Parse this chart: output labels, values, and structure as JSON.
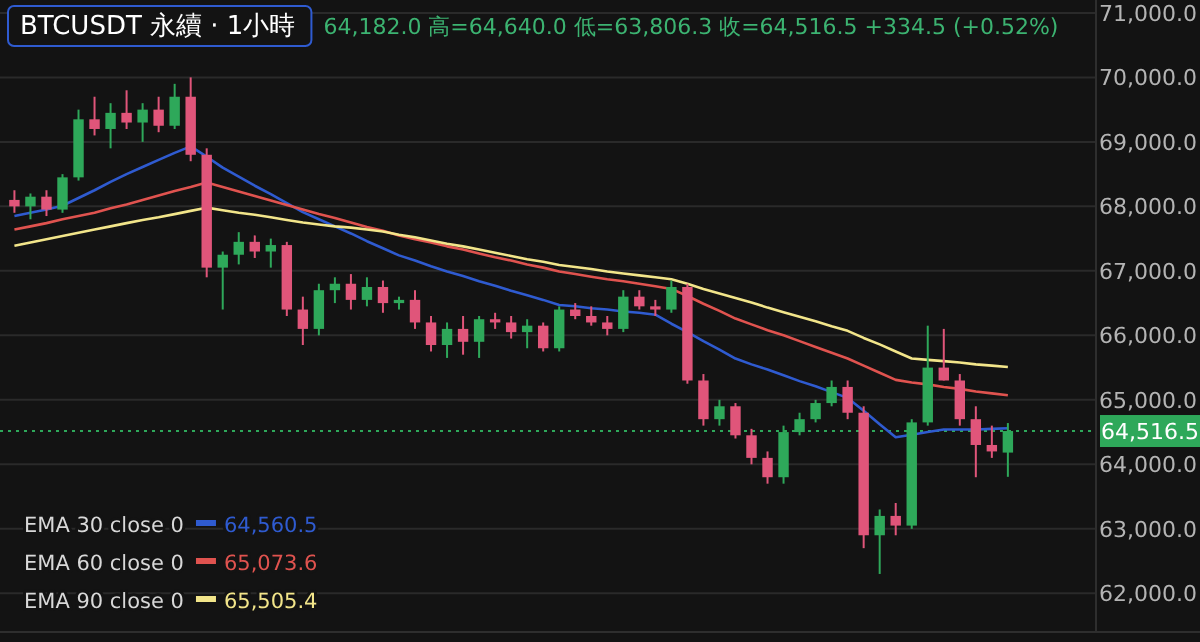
{
  "chart_data": {
    "type": "candlestick",
    "title": "BTCUSDT 永續 · 1小時",
    "subtitle": "64,182.0 高=64,640.0 低=63,806.3 收=64,516.5 +334.5 (+0.52%)",
    "categories": [
      null,
      null,
      null,
      null,
      null,
      null,
      null,
      null,
      null,
      null,
      null,
      null,
      null,
      null,
      null,
      null,
      null,
      null,
      null,
      null,
      null,
      null,
      null,
      null,
      null,
      null,
      null,
      null,
      null,
      null,
      null,
      null,
      null,
      null,
      null,
      null,
      null,
      null,
      null,
      null,
      null,
      null,
      null,
      null,
      null,
      null,
      null,
      null,
      null,
      null,
      null,
      null,
      null,
      null,
      null,
      null,
      null,
      null,
      null,
      null,
      null,
      null,
      null
    ],
    "ohlc": [
      [
        68100,
        68250,
        67900,
        68000
      ],
      [
        68000,
        68200,
        67800,
        68150
      ],
      [
        68150,
        68250,
        67850,
        67950
      ],
      [
        67950,
        68500,
        67900,
        68450
      ],
      [
        68450,
        69500,
        68400,
        69350
      ],
      [
        69350,
        69700,
        69100,
        69200
      ],
      [
        69200,
        69600,
        68900,
        69450
      ],
      [
        69450,
        69800,
        69200,
        69300
      ],
      [
        69300,
        69600,
        69000,
        69500
      ],
      [
        69500,
        69700,
        69150,
        69250
      ],
      [
        69250,
        69900,
        69200,
        69700
      ],
      [
        69700,
        70000,
        68700,
        68800
      ],
      [
        68800,
        68900,
        66900,
        67050
      ],
      [
        67050,
        67300,
        66400,
        67250
      ],
      [
        67250,
        67600,
        67100,
        67450
      ],
      [
        67450,
        67550,
        67200,
        67300
      ],
      [
        67300,
        67500,
        67050,
        67400
      ],
      [
        67400,
        67450,
        66300,
        66400
      ],
      [
        66400,
        66600,
        65850,
        66100
      ],
      [
        66100,
        66800,
        66000,
        66700
      ],
      [
        66700,
        66900,
        66500,
        66800
      ],
      [
        66800,
        66950,
        66400,
        66550
      ],
      [
        66550,
        66900,
        66450,
        66750
      ],
      [
        66750,
        66850,
        66350,
        66500
      ],
      [
        66500,
        66600,
        66400,
        66550
      ],
      [
        66550,
        66700,
        66100,
        66200
      ],
      [
        66200,
        66300,
        65750,
        65850
      ],
      [
        65850,
        66200,
        65650,
        66100
      ],
      [
        66100,
        66300,
        65700,
        65900
      ],
      [
        65900,
        66300,
        65650,
        66250
      ],
      [
        66250,
        66350,
        66100,
        66200
      ],
      [
        66200,
        66300,
        65950,
        66050
      ],
      [
        66050,
        66250,
        65800,
        66150
      ],
      [
        66150,
        66200,
        65750,
        65800
      ],
      [
        65800,
        66450,
        65750,
        66400
      ],
      [
        66400,
        66500,
        66250,
        66300
      ],
      [
        66300,
        66450,
        66150,
        66200
      ],
      [
        66200,
        66300,
        66000,
        66100
      ],
      [
        66100,
        66700,
        66050,
        66600
      ],
      [
        66600,
        66700,
        66400,
        66450
      ],
      [
        66450,
        66550,
        66300,
        66400
      ],
      [
        66400,
        66850,
        66350,
        66750
      ],
      [
        66750,
        66800,
        65250,
        65300
      ],
      [
        65300,
        65400,
        64600,
        64700
      ],
      [
        64700,
        65000,
        64600,
        64900
      ],
      [
        64900,
        64950,
        64400,
        64450
      ],
      [
        64450,
        64550,
        64000,
        64100
      ],
      [
        64100,
        64200,
        63700,
        63800
      ],
      [
        63800,
        64600,
        63700,
        64500
      ],
      [
        64500,
        64800,
        64450,
        64700
      ],
      [
        64700,
        65000,
        64650,
        64950
      ],
      [
        64950,
        65300,
        64900,
        65200
      ],
      [
        65200,
        65300,
        64700,
        64800
      ],
      [
        64800,
        64900,
        62700,
        62900
      ],
      [
        62900,
        63300,
        62300,
        63200
      ],
      [
        63200,
        63400,
        62900,
        63050
      ],
      [
        63050,
        64700,
        63000,
        64650
      ],
      [
        64650,
        66150,
        64600,
        65500
      ],
      [
        65500,
        66100,
        65300,
        65300
      ],
      [
        65300,
        65400,
        64600,
        64700
      ],
      [
        64700,
        64900,
        63800,
        64300
      ],
      [
        64300,
        64600,
        64100,
        64200
      ],
      [
        64182,
        64640,
        63806.3,
        64516.5
      ]
    ],
    "colors": [
      "#e0557a",
      "#2ea85a",
      "#e0557a",
      "#2ea85a",
      "#2ea85a",
      "#e0557a",
      "#2ea85a",
      "#e0557a",
      "#2ea85a",
      "#e0557a",
      "#2ea85a",
      "#e0557a",
      "#e0557a",
      "#2ea85a",
      "#2ea85a",
      "#e0557a",
      "#2ea85a",
      "#e0557a",
      "#e0557a",
      "#2ea85a",
      "#2ea85a",
      "#e0557a",
      "#2ea85a",
      "#e0557a",
      "#2ea85a",
      "#e0557a",
      "#e0557a",
      "#2ea85a",
      "#e0557a",
      "#2ea85a",
      "#e0557a",
      "#e0557a",
      "#2ea85a",
      "#e0557a",
      "#2ea85a",
      "#e0557a",
      "#e0557a",
      "#e0557a",
      "#2ea85a",
      "#e0557a",
      "#e0557a",
      "#2ea85a",
      "#e0557a",
      "#e0557a",
      "#2ea85a",
      "#e0557a",
      "#e0557a",
      "#e0557a",
      "#2ea85a",
      "#2ea85a",
      "#2ea85a",
      "#2ea85a",
      "#e0557a",
      "#e0557a",
      "#2ea85a",
      "#e0557a",
      "#2ea85a",
      "#2ea85a",
      "#e0557a",
      "#e0557a",
      "#e0557a",
      "#e0557a",
      "#2ea85a"
    ],
    "series": [
      {
        "type": "line",
        "name": "EMA 30 close 0",
        "color": "#2f5bd0",
        "values": [
          67850,
          67900,
          67950,
          68010,
          68130,
          68250,
          68380,
          68500,
          68610,
          68720,
          68830,
          68930,
          68770,
          68600,
          68460,
          68320,
          68190,
          68050,
          67910,
          67800,
          67690,
          67580,
          67460,
          67350,
          67240,
          67160,
          67070,
          66990,
          66920,
          66840,
          66770,
          66690,
          66620,
          66550,
          66470,
          66450,
          66420,
          66400,
          66370,
          66350,
          66320,
          66180,
          66050,
          65910,
          65780,
          65640,
          65550,
          65470,
          65380,
          65290,
          65210,
          65120,
          65030,
          64830,
          64620,
          64420,
          64460,
          64500,
          64540,
          64540,
          64540,
          64550,
          64560
        ]
      },
      {
        "type": "line",
        "name": "EMA 60 close 0",
        "color": "#e0534f",
        "values": [
          67640,
          67690,
          67740,
          67800,
          67850,
          67900,
          67970,
          68030,
          68100,
          68170,
          68240,
          68300,
          68370,
          68300,
          68230,
          68160,
          68090,
          68020,
          67950,
          67880,
          67820,
          67750,
          67680,
          67620,
          67550,
          67490,
          67440,
          67380,
          67330,
          67270,
          67210,
          67160,
          67100,
          67050,
          66990,
          66950,
          66910,
          66870,
          66840,
          66800,
          66760,
          66720,
          66610,
          66490,
          66380,
          66260,
          66170,
          66080,
          66000,
          65910,
          65820,
          65730,
          65640,
          65530,
          65420,
          65310,
          65270,
          65240,
          65200,
          65170,
          65130,
          65100,
          65070
        ]
      },
      {
        "type": "line",
        "name": "EMA 90 close 0",
        "color": "#f2e58a",
        "values": [
          67390,
          67440,
          67490,
          67540,
          67590,
          67640,
          67690,
          67740,
          67790,
          67830,
          67880,
          67930,
          67980,
          67940,
          67900,
          67870,
          67830,
          67790,
          67750,
          67720,
          67690,
          67670,
          67640,
          67610,
          67560,
          67520,
          67470,
          67420,
          67380,
          67330,
          67280,
          67230,
          67180,
          67140,
          67090,
          67060,
          67030,
          66990,
          66960,
          66930,
          66900,
          66870,
          66800,
          66720,
          66650,
          66580,
          66510,
          66430,
          66360,
          66290,
          66220,
          66140,
          66070,
          65960,
          65860,
          65750,
          65640,
          65620,
          65600,
          65580,
          65550,
          65530,
          65510
        ]
      }
    ],
    "annotations": [
      "64,560.5",
      "65,073.6",
      "65,505.4"
    ],
    "ylim": [
      61400,
      71200
    ],
    "yticks": [
      {
        "value": 62000,
        "label": "62,000.0"
      },
      {
        "value": 63000,
        "label": "63,000.0"
      },
      {
        "value": 64000,
        "label": "64,000.0"
      },
      {
        "value": 65000,
        "label": "65,000.0"
      },
      {
        "value": 66000,
        "label": "66,000.0"
      },
      {
        "value": 67000,
        "label": "67,000.0"
      },
      {
        "value": 68000,
        "label": "68,000.0"
      },
      {
        "value": 69000,
        "label": "69,000.0"
      },
      {
        "value": 70000,
        "label": "70,000.0"
      },
      {
        "value": 71000,
        "label": "71,000.0"
      }
    ],
    "ref_lines": [
      {
        "axis": "y",
        "value": 64516.5,
        "label": "64,516.5",
        "color": "#2ea85a",
        "line_style": "dotted"
      }
    ],
    "grid": "y",
    "legend": "bottom left",
    "tick_labels": "y"
  }
}
